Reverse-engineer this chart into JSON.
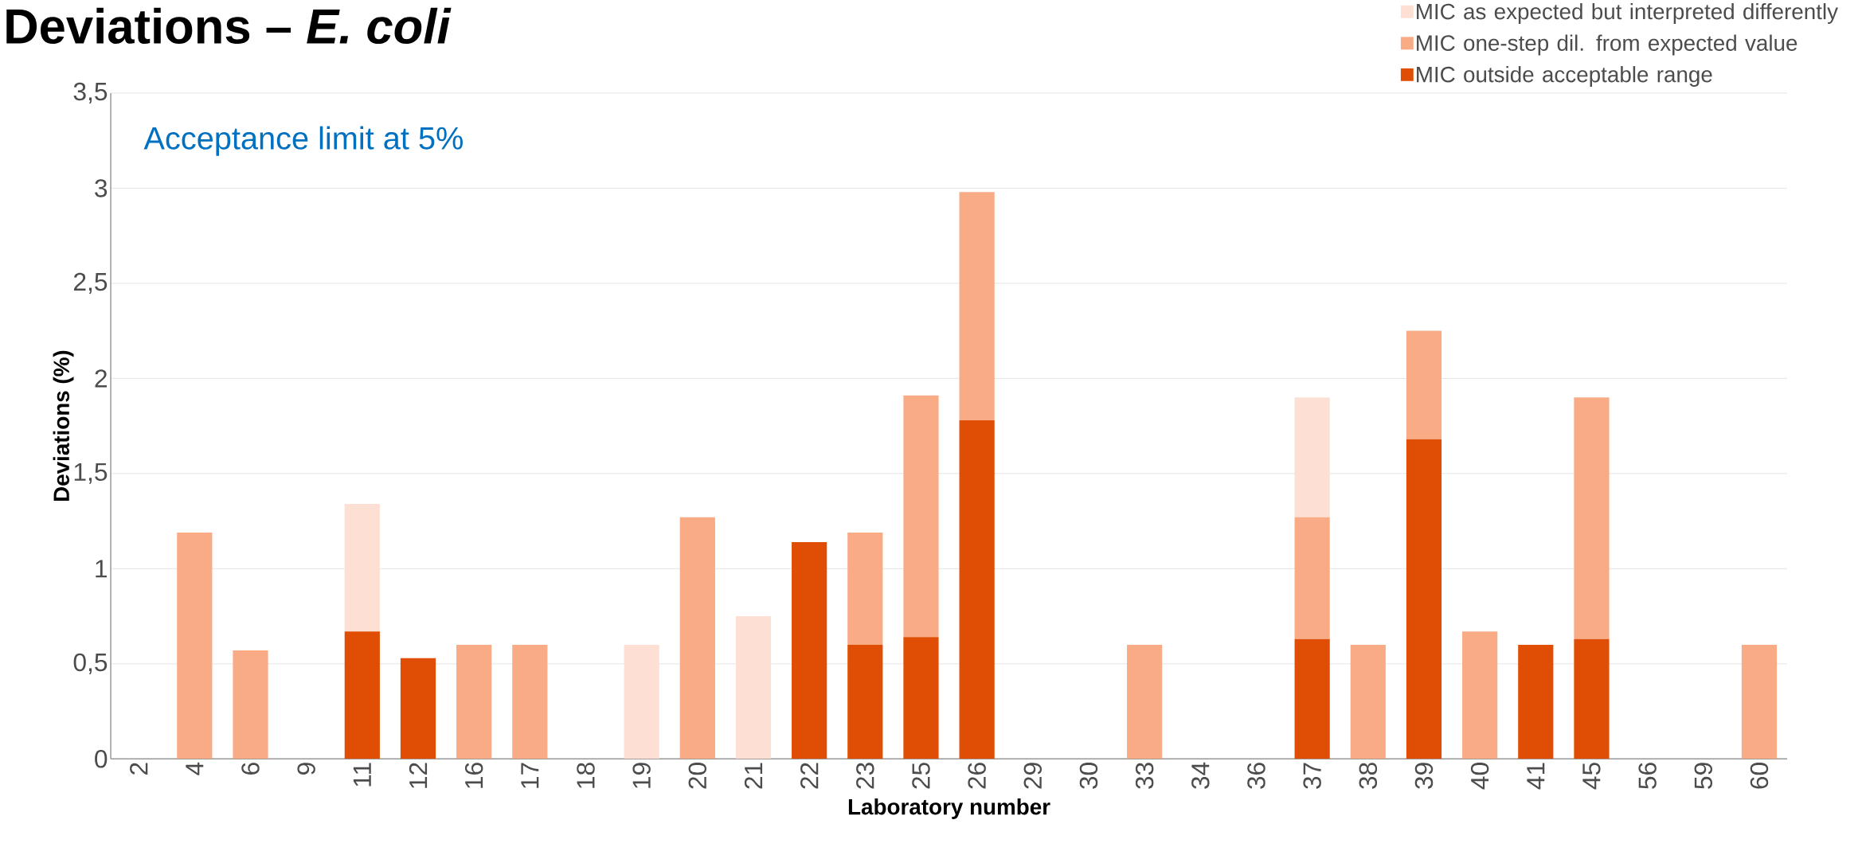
{
  "chart_data": {
    "type": "bar",
    "stacked": true,
    "title": "Deviations – *E. coli*",
    "xlabel": "Laboratory number",
    "ylabel": "Deviations (%)",
    "annotations": [
      "Acceptance limit at 5%"
    ],
    "categories": [
      "2",
      "4",
      "6",
      "9",
      "11",
      "12",
      "16",
      "17",
      "18",
      "19",
      "20",
      "21",
      "22",
      "23",
      "25",
      "26",
      "29",
      "30",
      "33",
      "34",
      "36",
      "37",
      "38",
      "39",
      "40",
      "41",
      "45",
      "56",
      "59",
      "60"
    ],
    "series": [
      {
        "name": "MIC outside acceptable range",
        "color": "#e04e05",
        "values": [
          null,
          null,
          null,
          null,
          0.67,
          0.53,
          null,
          null,
          null,
          null,
          null,
          null,
          1.14,
          0.6,
          0.64,
          1.78,
          null,
          null,
          null,
          null,
          null,
          0.63,
          null,
          1.68,
          null,
          0.6,
          0.63,
          null,
          null,
          null
        ]
      },
      {
        "name": "MIC one-step dil. from expected value",
        "color": "#f9ab85",
        "values": [
          null,
          1.19,
          0.57,
          null,
          null,
          null,
          0.6,
          0.6,
          null,
          null,
          1.27,
          null,
          null,
          0.59,
          1.27,
          1.2,
          null,
          null,
          0.6,
          null,
          null,
          0.64,
          0.6,
          0.57,
          0.67,
          null,
          1.27,
          null,
          null,
          0.6
        ]
      },
      {
        "name": "MIC as expected but interpreted differently",
        "color": "#fde0d3",
        "values": [
          null,
          null,
          null,
          null,
          0.67,
          null,
          null,
          null,
          null,
          0.6,
          null,
          0.75,
          null,
          null,
          null,
          null,
          null,
          null,
          null,
          null,
          null,
          0.63,
          null,
          null,
          null,
          null,
          null,
          null,
          null,
          null
        ]
      }
    ],
    "ylim": [
      0,
      3.5
    ],
    "yticks": [
      0,
      {
        "value": 0.5,
        "label": "0,5"
      },
      1,
      {
        "value": 1.5,
        "label": "1,5"
      },
      2,
      {
        "value": 2.5,
        "label": "2,5"
      },
      3,
      {
        "value": 3.5,
        "label": "3,5"
      }
    ],
    "grid": "y",
    "legend": "top right"
  }
}
